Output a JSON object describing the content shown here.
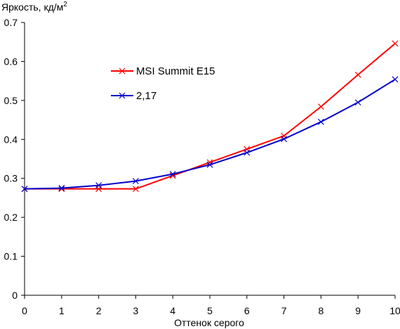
{
  "chart_data": {
    "type": "line",
    "xlabel": "Оттенок серого",
    "ylabel": {
      "text": "Яркость, кд/м",
      "superscript": "2"
    },
    "x": [
      0,
      1,
      2,
      3,
      4,
      5,
      6,
      7,
      8,
      9,
      10
    ],
    "xlim": [
      0,
      10
    ],
    "ylim": [
      0,
      0.7
    ],
    "xticks": [
      "0",
      "1",
      "2",
      "3",
      "4",
      "5",
      "6",
      "7",
      "8",
      "9",
      "10"
    ],
    "yticks": [
      "0",
      "0.1",
      "0.2",
      "0.3",
      "0.4",
      "0.5",
      "0.6",
      "0.7"
    ],
    "grid": false,
    "legend_position": "upper-left inside plot",
    "series": [
      {
        "name": "MSI Summit E15",
        "color": "#ff0000",
        "marker": "x",
        "values": [
          0.273,
          0.273,
          0.273,
          0.273,
          0.307,
          0.341,
          0.375,
          0.409,
          0.484,
          0.566,
          0.646
        ]
      },
      {
        "name": "2,17",
        "color": "#0000cc",
        "marker": "x",
        "values": [
          0.273,
          0.275,
          0.282,
          0.293,
          0.311,
          0.335,
          0.366,
          0.401,
          0.445,
          0.495,
          0.554
        ]
      }
    ]
  }
}
